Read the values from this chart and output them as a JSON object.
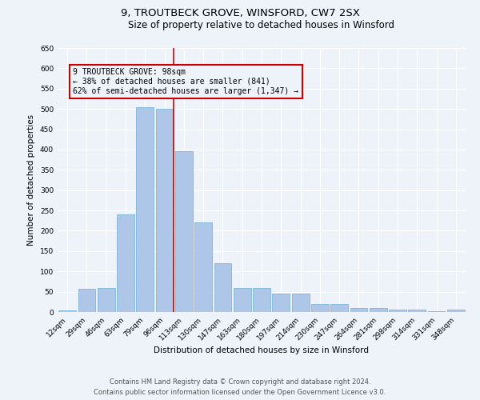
{
  "title": "9, TROUTBECK GROVE, WINSFORD, CW7 2SX",
  "subtitle": "Size of property relative to detached houses in Winsford",
  "xlabel": "Distribution of detached houses by size in Winsford",
  "ylabel": "Number of detached properties",
  "categories": [
    "12sqm",
    "29sqm",
    "46sqm",
    "63sqm",
    "79sqm",
    "96sqm",
    "113sqm",
    "130sqm",
    "147sqm",
    "163sqm",
    "180sqm",
    "197sqm",
    "214sqm",
    "230sqm",
    "247sqm",
    "264sqm",
    "281sqm",
    "298sqm",
    "314sqm",
    "331sqm",
    "348sqm"
  ],
  "values": [
    3,
    57,
    60,
    240,
    505,
    500,
    395,
    220,
    120,
    60,
    60,
    45,
    45,
    20,
    20,
    10,
    10,
    5,
    5,
    1,
    5
  ],
  "bar_color": "#aec6e8",
  "bar_edge_color": "#6aaed6",
  "annotation_box_color": "#cc0000",
  "vline_color": "#cc0000",
  "vline_x_index": 5,
  "annotation_text_line1": "9 TROUTBECK GROVE: 98sqm",
  "annotation_text_line2": "← 38% of detached houses are smaller (841)",
  "annotation_text_line3": "62% of semi-detached houses are larger (1,347) →",
  "ylim": [
    0,
    650
  ],
  "yticks": [
    0,
    50,
    100,
    150,
    200,
    250,
    300,
    350,
    400,
    450,
    500,
    550,
    600,
    650
  ],
  "footnote1": "Contains HM Land Registry data © Crown copyright and database right 2024.",
  "footnote2": "Contains public sector information licensed under the Open Government Licence v3.0.",
  "bg_color": "#eef2f9",
  "grid_color": "#ffffff",
  "title_fontsize": 9.5,
  "subtitle_fontsize": 8.5,
  "axis_label_fontsize": 7.5,
  "tick_fontsize": 6.5,
  "annotation_fontsize": 7,
  "footnote_fontsize": 6
}
